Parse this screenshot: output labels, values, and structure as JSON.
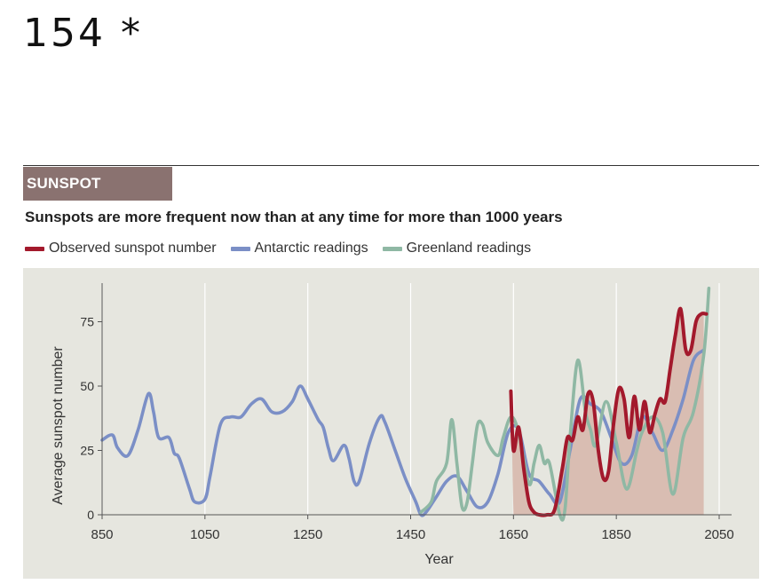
{
  "page_number": "154 *",
  "section_tag": "SUNSPOT ACTIVITY",
  "subtitle": "Sunspots are more frequent now than at any time for more than 1000 years",
  "colors": {
    "observed": "#a3192c",
    "antarctic": "#7b8fc6",
    "greenland": "#8fb8a4",
    "fill": "#d9bdb2",
    "plot_bg": "#e6e6df",
    "tag_bg": "#8a7270"
  },
  "legend": [
    {
      "label": "Observed sunspot number",
      "color": "#a3192c"
    },
    {
      "label": "Antarctic readings",
      "color": "#7b8fc6"
    },
    {
      "label": "Greenland readings",
      "color": "#8fb8a4"
    }
  ],
  "chart_data": {
    "type": "line",
    "xlabel": "Year",
    "ylabel": "Average sunspot number",
    "xlim": [
      850,
      2050
    ],
    "ylim": [
      0,
      90
    ],
    "x_ticks": [
      850,
      1050,
      1250,
      1450,
      1650,
      1850,
      2050
    ],
    "y_ticks": [
      0,
      25,
      50,
      75
    ],
    "grid": "vertical",
    "legend_position": "top",
    "shaded_region": {
      "x_start": 1650,
      "x_end": 2020,
      "note_series": "Observed sunspot number"
    },
    "series": [
      {
        "name": "Antarctic readings",
        "x": [
          850,
          870,
          880,
          900,
          920,
          940,
          950,
          960,
          980,
          990,
          1000,
          1020,
          1030,
          1050,
          1060,
          1080,
          1100,
          1120,
          1140,
          1160,
          1180,
          1200,
          1220,
          1235,
          1250,
          1270,
          1280,
          1290,
          1300,
          1320,
          1330,
          1340,
          1350,
          1370,
          1390,
          1400,
          1420,
          1440,
          1460,
          1470,
          1480,
          1500,
          1520,
          1540,
          1560,
          1580,
          1600,
          1620,
          1640,
          1660,
          1680,
          1700,
          1720,
          1740,
          1760,
          1780,
          1800,
          1820,
          1840,
          1860,
          1880,
          1900,
          1920,
          1940,
          1960,
          1980,
          2000,
          2020
        ],
        "y": [
          29,
          31,
          26,
          23,
          33,
          47,
          40,
          30,
          30,
          24,
          22,
          10,
          5,
          6,
          15,
          35,
          38,
          38,
          43,
          45,
          40,
          40,
          44,
          50,
          45,
          37,
          34,
          26,
          21,
          27,
          22,
          13,
          13,
          28,
          38,
          36,
          25,
          14,
          5,
          0,
          1,
          7,
          13,
          15,
          9,
          3,
          5,
          16,
          32,
          33,
          16,
          13,
          8,
          5,
          25,
          45,
          43,
          40,
          30,
          20,
          23,
          38,
          32,
          25,
          33,
          45,
          60,
          64
        ]
      },
      {
        "name": "Greenland readings",
        "x": [
          1470,
          1490,
          1500,
          1520,
          1530,
          1540,
          1550,
          1560,
          1570,
          1580,
          1590,
          1600,
          1620,
          1630,
          1645,
          1660,
          1680,
          1690,
          1700,
          1710,
          1720,
          1740,
          1750,
          1760,
          1775,
          1790,
          1800,
          1810,
          1830,
          1850,
          1870,
          1890,
          1900,
          1920,
          1940,
          1960,
          1980,
          2000,
          2020,
          2030
        ],
        "y": [
          1,
          5,
          13,
          20,
          37,
          20,
          3,
          5,
          20,
          35,
          35,
          28,
          23,
          30,
          38,
          32,
          12,
          20,
          27,
          20,
          20,
          0,
          2,
          30,
          60,
          40,
          33,
          27,
          44,
          28,
          10,
          25,
          32,
          38,
          32,
          8,
          30,
          40,
          62,
          88
        ]
      },
      {
        "name": "Observed sunspot number",
        "x": [
          1645,
          1650,
          1660,
          1670,
          1680,
          1690,
          1700,
          1715,
          1730,
          1745,
          1755,
          1765,
          1775,
          1785,
          1795,
          1805,
          1815,
          1825,
          1835,
          1845,
          1855,
          1865,
          1875,
          1885,
          1895,
          1905,
          1915,
          1925,
          1935,
          1945,
          1955,
          1965,
          1975,
          1985,
          1995,
          2005,
          2015,
          2025
        ],
        "y": [
          48,
          25,
          34,
          18,
          5,
          1,
          0,
          0,
          2,
          18,
          30,
          29,
          38,
          33,
          47,
          44,
          25,
          14,
          17,
          36,
          49,
          45,
          30,
          46,
          33,
          44,
          32,
          39,
          45,
          44,
          57,
          70,
          80,
          64,
          64,
          75,
          78,
          78
        ]
      }
    ]
  }
}
